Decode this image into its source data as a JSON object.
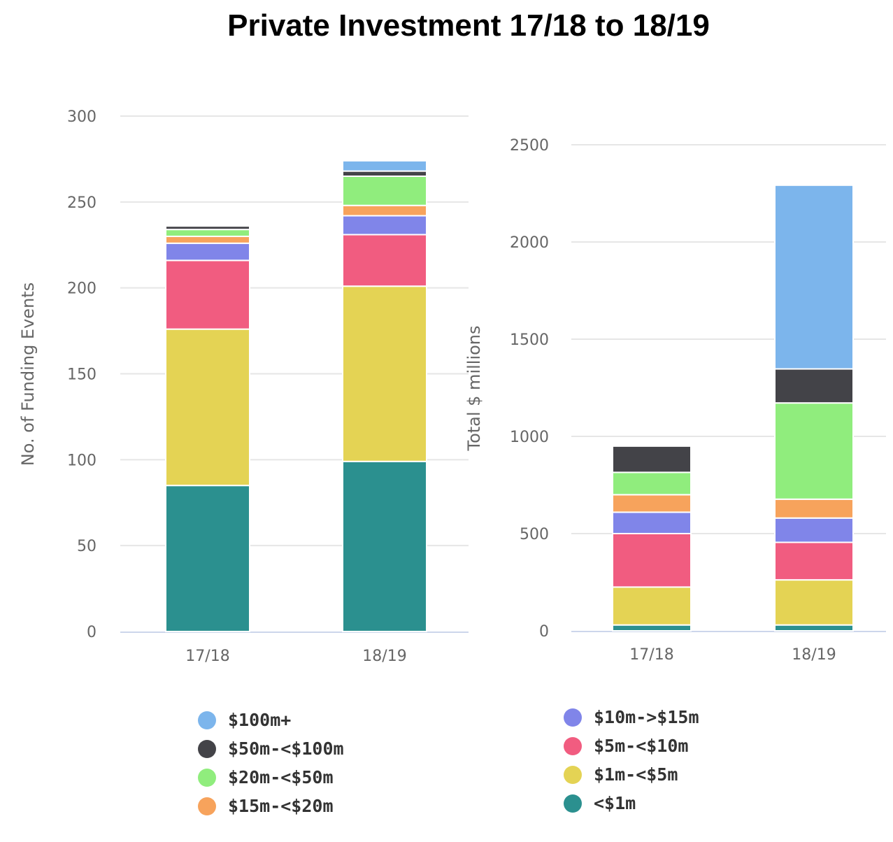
{
  "title": "Private Investment 17/18 to 18/19",
  "colors": {
    "$100m+": "#7cb5ec",
    "$50m-<$100m": "#434348",
    "$20m-<$50m": "#90ed7d",
    "$15m-<$20m": "#f7a35c",
    "$10m->$15m": "#8085e9",
    "$5m-<$10m": "#f15c80",
    "$1m-<$5m": "#e4d354",
    "<$1m": "#2b908f"
  },
  "legend": {
    "left": [
      "$100m+",
      "$50m-<$100m",
      "$20m-<$50m",
      "$15m-<$20m"
    ],
    "right": [
      "$10m->$15m",
      "$5m-<$10m",
      "$1m-<$5m",
      "<$1m"
    ]
  },
  "chart_data": [
    {
      "type": "bar",
      "stacked": true,
      "title": "",
      "xlabel": "",
      "ylabel": "No. of Funding Events",
      "ylim": [
        0,
        300
      ],
      "yticks": [
        0,
        50,
        100,
        150,
        200,
        250,
        300
      ],
      "categories": [
        "17/18",
        "18/19"
      ],
      "series": [
        {
          "name": "<$1m",
          "values": [
            85,
            99
          ]
        },
        {
          "name": "$1m-<$5m",
          "values": [
            91,
            102
          ]
        },
        {
          "name": "$5m-<$10m",
          "values": [
            40,
            30
          ]
        },
        {
          "name": "$10m->$15m",
          "values": [
            10,
            11
          ]
        },
        {
          "name": "$15m-<$20m",
          "values": [
            4,
            6
          ]
        },
        {
          "name": "$20m-<$50m",
          "values": [
            4,
            17
          ]
        },
        {
          "name": "$50m-<$100m",
          "values": [
            2,
            3
          ]
        },
        {
          "name": "$100m+",
          "values": [
            0,
            6
          ]
        }
      ]
    },
    {
      "type": "bar",
      "stacked": true,
      "title": "",
      "xlabel": "",
      "ylabel": "Total $ millions",
      "ylim": [
        0,
        2500
      ],
      "yticks": [
        0,
        500,
        1000,
        1500,
        2000,
        2500
      ],
      "categories": [
        "17/18",
        "18/19"
      ],
      "series": [
        {
          "name": "<$1m",
          "values": [
            30,
            30
          ]
        },
        {
          "name": "$1m-<$5m",
          "values": [
            195,
            232
          ]
        },
        {
          "name": "$5m-<$10m",
          "values": [
            275,
            193
          ]
        },
        {
          "name": "$10m->$15m",
          "values": [
            110,
            125
          ]
        },
        {
          "name": "$15m-<$20m",
          "values": [
            90,
            97
          ]
        },
        {
          "name": "$20m-<$50m",
          "values": [
            115,
            495
          ]
        },
        {
          "name": "$50m-<$100m",
          "values": [
            135,
            175
          ]
        },
        {
          "name": "$100m+",
          "values": [
            0,
            945
          ]
        }
      ]
    }
  ]
}
